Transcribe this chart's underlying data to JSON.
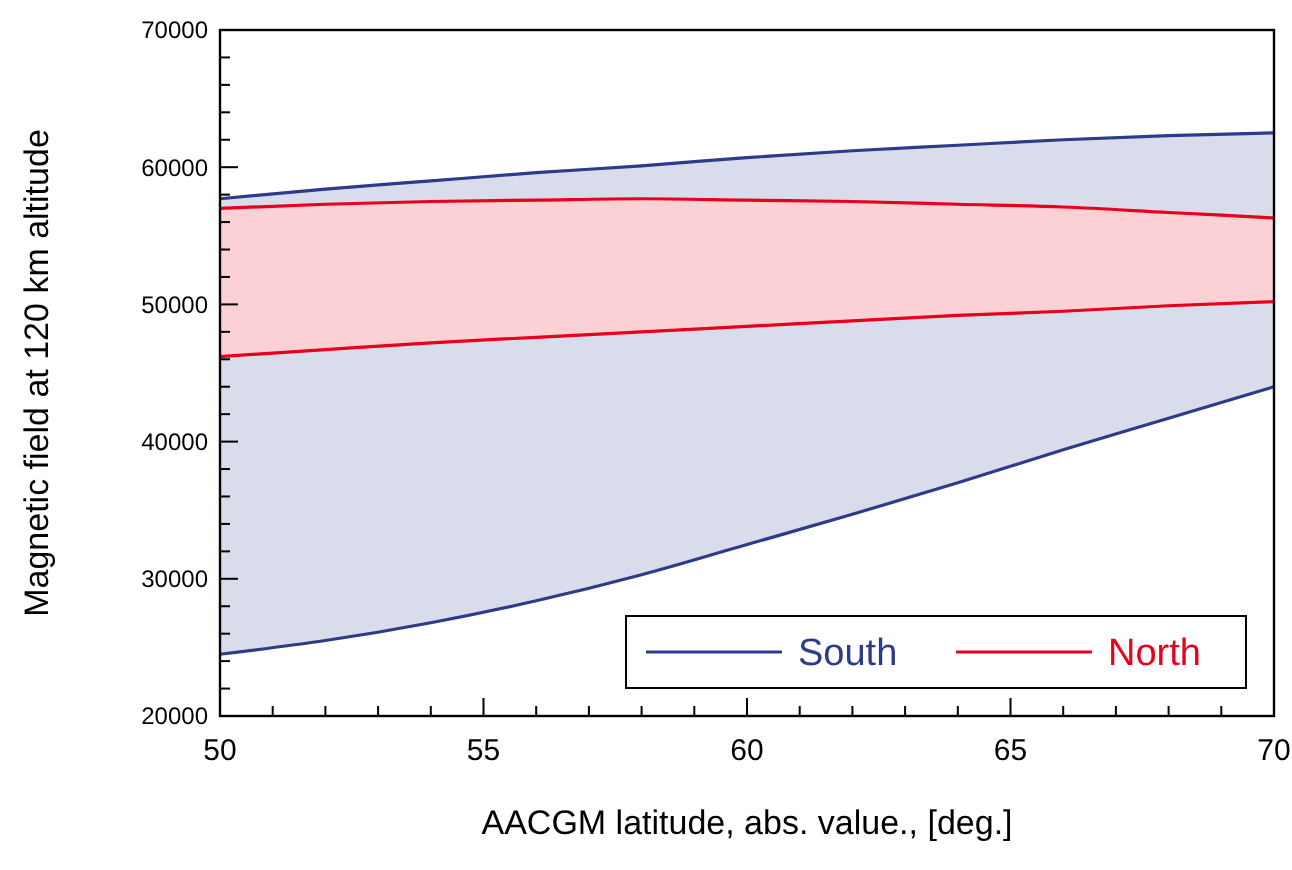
{
  "chart_data": {
    "type": "line",
    "xlabel": "AACGM latitude, abs. value., [deg.]",
    "ylabel": "Magnetic field at 120 km altitude",
    "x": [
      50,
      52,
      54,
      56,
      58,
      60,
      62,
      64,
      66,
      68,
      70
    ],
    "xlim": [
      50,
      70
    ],
    "ylim": [
      20000,
      70000
    ],
    "xticks": [
      50,
      {
        "value": 51,
        "label": null
      },
      {
        "value": 52,
        "label": null
      },
      {
        "value": 53,
        "label": null
      },
      {
        "value": 54,
        "label": null
      },
      55,
      {
        "value": 56,
        "label": null
      },
      {
        "value": 57,
        "label": null
      },
      {
        "value": 58,
        "label": null
      },
      {
        "value": 59,
        "label": null
      },
      60,
      {
        "value": 61,
        "label": null
      },
      {
        "value": 62,
        "label": null
      },
      {
        "value": 63,
        "label": null
      },
      {
        "value": 64,
        "label": null
      },
      65,
      {
        "value": 66,
        "label": null
      },
      {
        "value": 67,
        "label": null
      },
      {
        "value": 68,
        "label": null
      },
      {
        "value": 69,
        "label": null
      },
      70
    ],
    "yticks": [
      20000,
      {
        "value": 22000,
        "label": null
      },
      {
        "value": 24000,
        "label": null
      },
      {
        "value": 26000,
        "label": null
      },
      {
        "value": 28000,
        "label": null
      },
      30000,
      {
        "value": 32000,
        "label": null
      },
      {
        "value": 34000,
        "label": null
      },
      {
        "value": 36000,
        "label": null
      },
      {
        "value": 38000,
        "label": null
      },
      40000,
      {
        "value": 42000,
        "label": null
      },
      {
        "value": 44000,
        "label": null
      },
      {
        "value": 46000,
        "label": null
      },
      {
        "value": 48000,
        "label": null
      },
      50000,
      {
        "value": 52000,
        "label": null
      },
      {
        "value": 54000,
        "label": null
      },
      {
        "value": 56000,
        "label": null
      },
      {
        "value": 58000,
        "label": null
      },
      60000,
      {
        "value": 62000,
        "label": null
      },
      {
        "value": 64000,
        "label": null
      },
      {
        "value": 66000,
        "label": null
      },
      {
        "value": 68000,
        "label": null
      },
      70000
    ],
    "legend": "bottom right",
    "line_style": "solid",
    "series": [
      {
        "name": "South",
        "color": "#2e3a8c",
        "values": [
          57700,
          58400,
          59000,
          59600,
          60100,
          60700,
          61200,
          61600,
          62000,
          62300,
          62500
        ],
        "lower": [
          24500,
          25500,
          26800,
          28400,
          30300,
          32500,
          34700,
          37000,
          39400,
          41700,
          44000
        ],
        "upper": [
          57700,
          58400,
          59000,
          59600,
          60100,
          60700,
          61200,
          61600,
          62000,
          62300,
          62500
        ]
      },
      {
        "color": "#2e3a8c",
        "values": [
          24500,
          25500,
          26800,
          28400,
          30300,
          32500,
          34700,
          37000,
          39400,
          41700,
          44000
        ]
      },
      {
        "name": "North",
        "color": "#e8001c",
        "values": [
          57000,
          57300,
          57500,
          57600,
          57700,
          57600,
          57500,
          57300,
          57100,
          56700,
          56300
        ],
        "lower": [
          46200,
          46700,
          47200,
          47600,
          48000,
          48400,
          48800,
          49200,
          49500,
          49900,
          50200
        ],
        "upper": [
          57000,
          57300,
          57500,
          57600,
          57700,
          57600,
          57500,
          57300,
          57100,
          56700,
          56300
        ]
      },
      {
        "color": "#e8001c",
        "values": [
          46200,
          46700,
          47200,
          47600,
          48000,
          48400,
          48800,
          49200,
          49500,
          49900,
          50200
        ]
      }
    ]
  }
}
